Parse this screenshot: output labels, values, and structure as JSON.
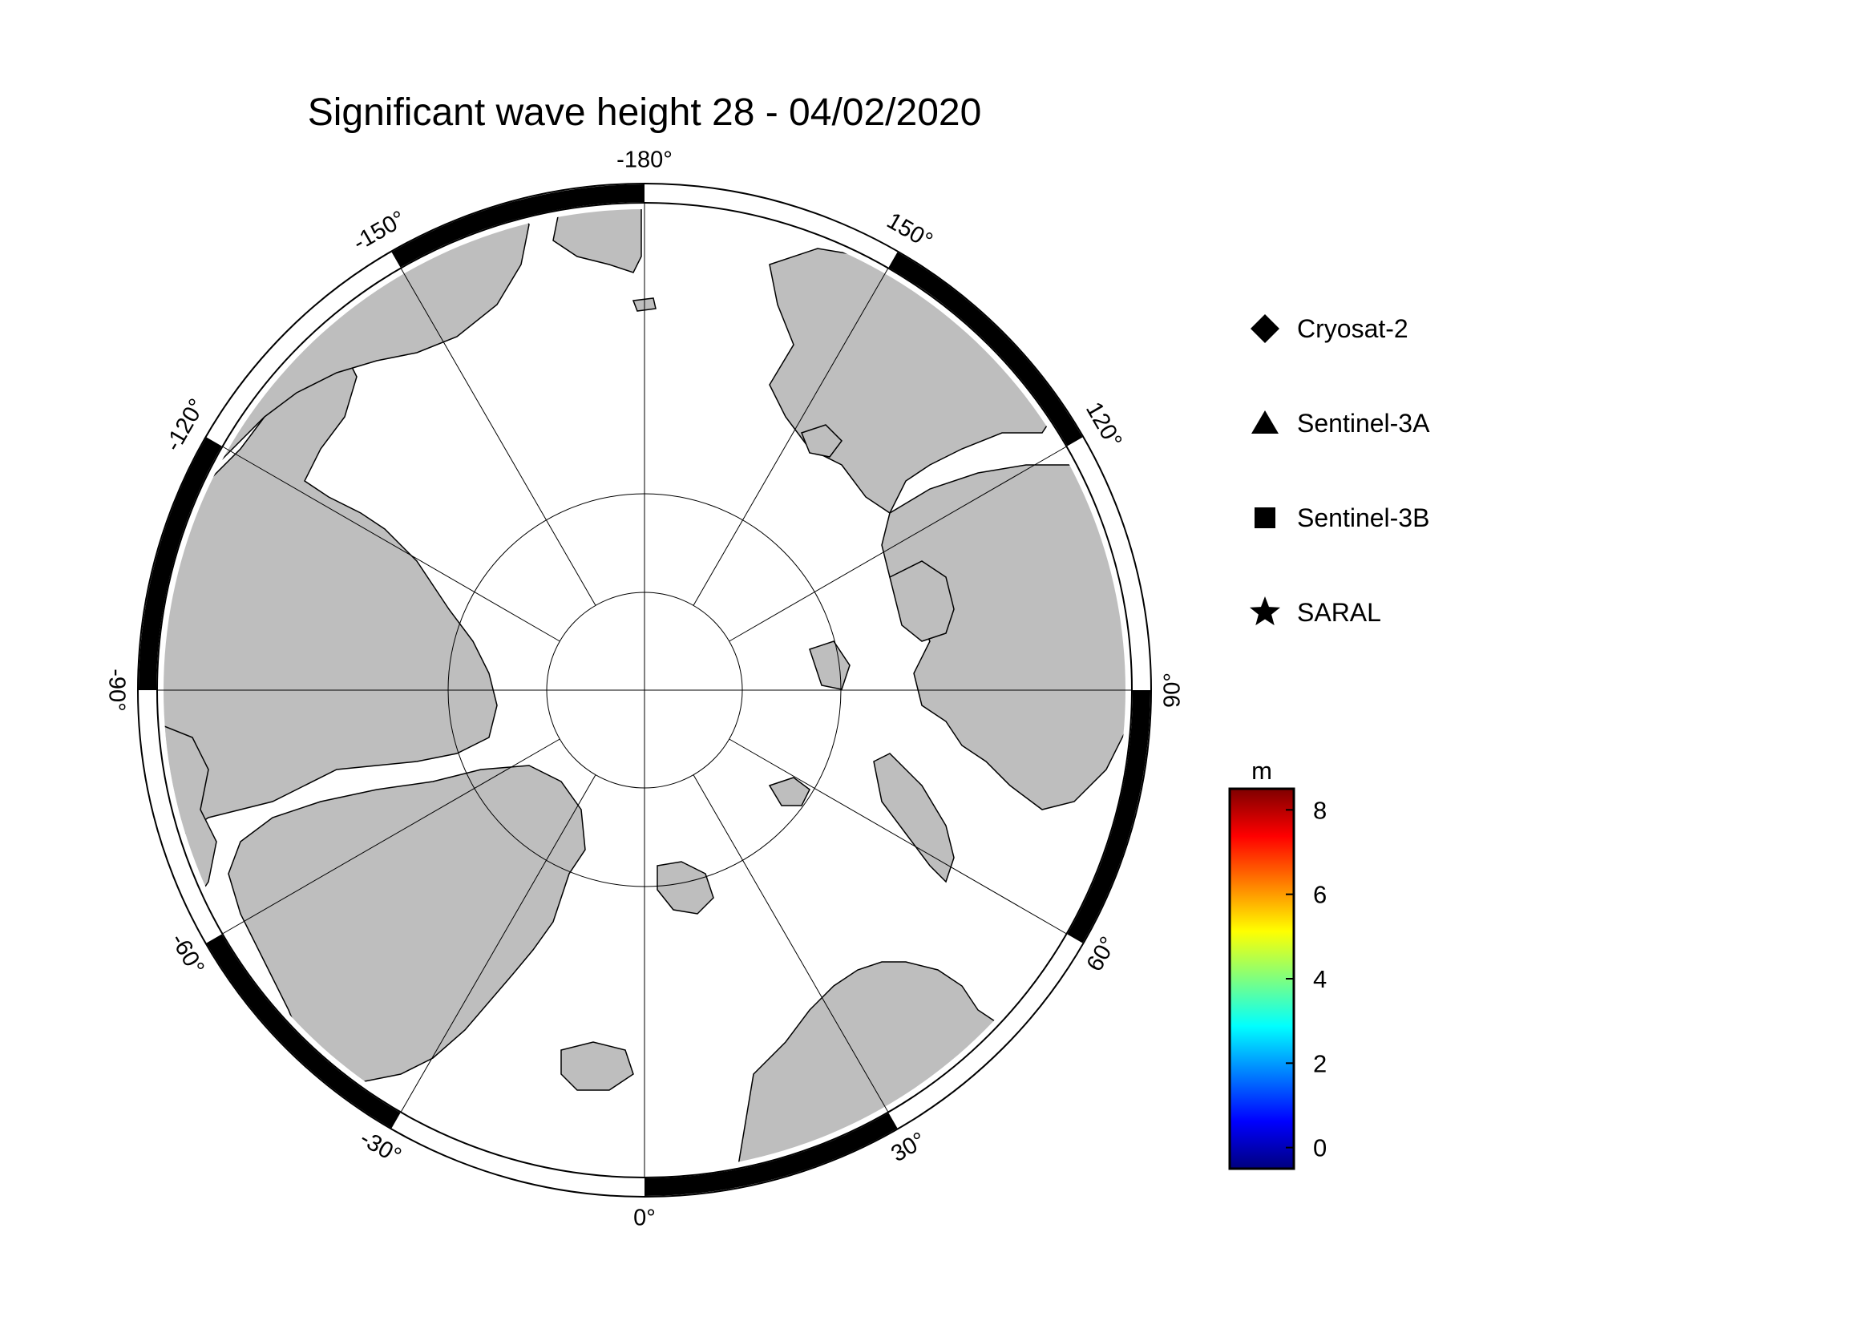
{
  "title": "Significant wave height 28 - 04/02/2020",
  "projection": "north-polar-stereographic",
  "longitude_labels": [
    {
      "lon": -180,
      "text": "-180°"
    },
    {
      "lon": 150,
      "text": "150°"
    },
    {
      "lon": 120,
      "text": "120°"
    },
    {
      "lon": 90,
      "text": "90°"
    },
    {
      "lon": 60,
      "text": "60°"
    },
    {
      "lon": 30,
      "text": "30°"
    },
    {
      "lon": 0,
      "text": "0°"
    },
    {
      "lon": -30,
      "text": "-30°"
    },
    {
      "lon": -60,
      "text": "-60°"
    },
    {
      "lon": -90,
      "text": "-90°"
    },
    {
      "lon": -120,
      "text": "-120°"
    },
    {
      "lon": -150,
      "text": "-150°"
    }
  ],
  "legend": [
    {
      "marker": "diamond",
      "label": "Cryosat-2"
    },
    {
      "marker": "triangle",
      "label": "Sentinel-3A"
    },
    {
      "marker": "square",
      "label": "Sentinel-3B"
    },
    {
      "marker": "star",
      "label": "SARAL"
    }
  ],
  "colorbar": {
    "unit": "m",
    "min": -0.5,
    "max": 8.5,
    "ticks": [
      0,
      2,
      4,
      6,
      8
    ],
    "colormap": [
      "#00007f",
      "#0000ff",
      "#007fff",
      "#00ffff",
      "#7fff7f",
      "#ffff00",
      "#ff7f00",
      "#ff0000",
      "#7f0000"
    ]
  },
  "colors": {
    "land": "#bebebe",
    "ocean": "#ffffff",
    "coast": "#000000"
  }
}
